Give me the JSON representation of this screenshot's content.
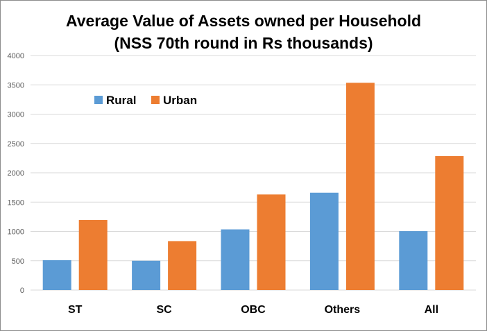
{
  "chart_data": {
    "type": "bar",
    "title": "Average Value of Assets owned per Household",
    "subtitle": "(NSS 70th round in Rs thousands)",
    "xlabel": "",
    "ylabel": "",
    "categories": [
      "ST",
      "SC",
      "OBC",
      "Others",
      "All"
    ],
    "series": [
      {
        "name": "Rural",
        "color": "#5B9BD5",
        "values": [
          510,
          500,
          1035,
          1660,
          1005
        ]
      },
      {
        "name": "Urban",
        "color": "#ED7D31",
        "values": [
          1195,
          835,
          1630,
          3535,
          2285
        ]
      }
    ],
    "ylim": [
      0,
      4000
    ],
    "yticks": [
      0,
      500,
      1000,
      1500,
      2000,
      2500,
      3000,
      3500,
      4000
    ],
    "grid": true,
    "legend": "top-left"
  }
}
